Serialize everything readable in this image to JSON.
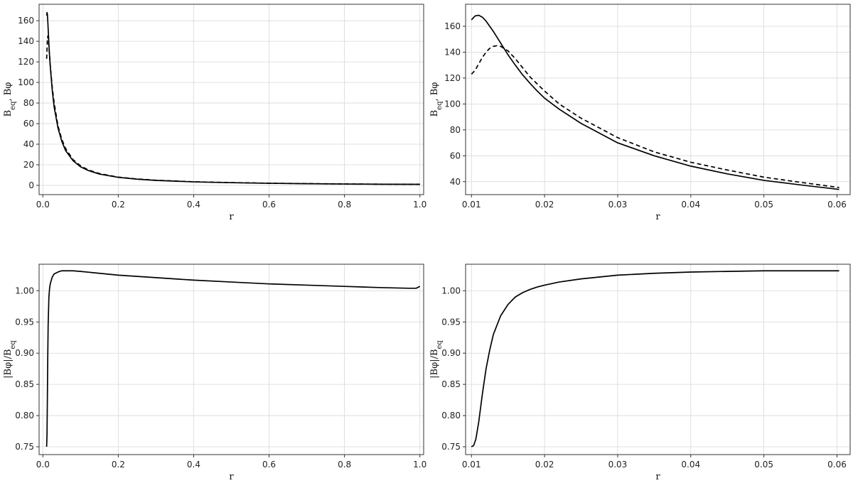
{
  "chart_data": [
    {
      "type": "line",
      "xlabel": "r",
      "ylabel": "Beq, Bφ",
      "ylabel_parts": {
        "b1": "B",
        "sub": "eq",
        "sep": ",  ",
        "b2": "Bφ"
      },
      "xlim": [
        -0.01,
        1.01
      ],
      "ylim": [
        -9,
        176
      ],
      "xticks": [
        0.0,
        0.2,
        0.4,
        0.6,
        0.8,
        1.0
      ],
      "xtick_labels": [
        "0.0",
        "0.2",
        "0.4",
        "0.6",
        "0.8",
        "1.0"
      ],
      "yticks": [
        0,
        20,
        40,
        60,
        80,
        100,
        120,
        140,
        160
      ],
      "ytick_labels": [
        "0",
        "20",
        "40",
        "60",
        "80",
        "100",
        "120",
        "140",
        "160"
      ],
      "grid": true,
      "series": [
        {
          "style": "solid",
          "x": [
            0.01,
            0.011,
            0.012,
            0.013,
            0.015,
            0.017,
            0.02,
            0.025,
            0.03,
            0.04,
            0.05,
            0.06,
            0.08,
            0.1,
            0.12,
            0.15,
            0.2,
            0.25,
            0.3,
            0.4,
            0.5,
            0.6,
            0.7,
            0.8,
            0.9,
            1.0
          ],
          "y": [
            165,
            168,
            166,
            160,
            145,
            130,
            114,
            92,
            76,
            56,
            43,
            34,
            24,
            18,
            14.5,
            11,
            7.8,
            6,
            4.8,
            3.4,
            2.6,
            2.0,
            1.6,
            1.3,
            1.1,
            1.0
          ]
        },
        {
          "style": "dashed",
          "x": [
            0.01,
            0.011,
            0.012,
            0.013,
            0.015,
            0.017,
            0.02,
            0.025,
            0.03,
            0.04,
            0.05,
            0.06,
            0.08,
            0.1,
            0.12,
            0.15,
            0.2,
            0.25,
            0.3,
            0.4,
            0.5,
            0.6,
            0.7,
            0.8,
            0.9,
            1.0
          ],
          "y": [
            123,
            133,
            142,
            145,
            140,
            130,
            115,
            95,
            80,
            58,
            45,
            36,
            25,
            19,
            15,
            11.5,
            8.0,
            6.2,
            5.0,
            3.5,
            2.7,
            2.1,
            1.7,
            1.35,
            1.15,
            1.0
          ]
        }
      ]
    },
    {
      "type": "line",
      "xlabel": "r",
      "ylabel": "Beq, Bφ",
      "ylabel_parts": {
        "b1": "B",
        "sub": "eq",
        "sep": ",  ",
        "b2": "Bφ"
      },
      "xlim": [
        0.0992,
        0.0618
      ],
      "xlim_note": "",
      "xrange": [
        0.0092,
        0.0618
      ],
      "ylim": [
        30,
        177
      ],
      "xticks": [
        0.01,
        0.02,
        0.03,
        0.04,
        0.05,
        0.06
      ],
      "xtick_labels": [
        "0.01",
        "0.02",
        "0.03",
        "0.04",
        "0.05",
        "0.06"
      ],
      "yticks": [
        40,
        60,
        80,
        100,
        120,
        140,
        160
      ],
      "ytick_labels": [
        "40",
        "60",
        "80",
        "100",
        "120",
        "140",
        "160"
      ],
      "grid": true,
      "series": [
        {
          "style": "solid",
          "x": [
            0.01,
            0.0105,
            0.011,
            0.0115,
            0.012,
            0.013,
            0.014,
            0.015,
            0.016,
            0.017,
            0.018,
            0.019,
            0.02,
            0.022,
            0.025,
            0.03,
            0.035,
            0.04,
            0.045,
            0.05,
            0.055,
            0.0603
          ],
          "y": [
            165,
            168,
            168.5,
            167,
            164,
            156,
            147,
            138,
            130,
            122.5,
            116,
            110,
            104.5,
            96,
            85,
            70,
            60,
            52,
            46,
            41,
            37.5,
            34
          ]
        },
        {
          "style": "dashed",
          "x": [
            0.01,
            0.0105,
            0.011,
            0.0115,
            0.012,
            0.0125,
            0.013,
            0.0135,
            0.014,
            0.015,
            0.016,
            0.017,
            0.018,
            0.019,
            0.02,
            0.022,
            0.025,
            0.03,
            0.035,
            0.04,
            0.045,
            0.05,
            0.055,
            0.0603
          ],
          "y": [
            123,
            126,
            131,
            136,
            140,
            143,
            144.5,
            145,
            144.5,
            141,
            135,
            128,
            121,
            115.5,
            110,
            100,
            89,
            74,
            63,
            55,
            49,
            43.5,
            39.5,
            35.5
          ]
        }
      ]
    },
    {
      "type": "line",
      "xlabel": "r",
      "ylabel": "|Bφ|/Beq",
      "ylabel_parts": {
        "b1": "|Bφ|/B",
        "sub": "eq",
        "sep": "",
        "b2": ""
      },
      "xlim": [
        -0.01,
        1.01
      ],
      "ylim": [
        0.7375,
        1.0425
      ],
      "xticks": [
        0.0,
        0.2,
        0.4,
        0.6,
        0.8,
        1.0
      ],
      "xtick_labels": [
        "0.0",
        "0.2",
        "0.4",
        "0.6",
        "0.8",
        "1.0"
      ],
      "yticks": [
        0.75,
        0.8,
        0.85,
        0.9,
        0.95,
        1.0
      ],
      "ytick_labels": [
        "0.75",
        "0.80",
        "0.85",
        "0.90",
        "0.95",
        "1.00"
      ],
      "grid": true,
      "series": [
        {
          "style": "solid",
          "x": [
            0.01,
            0.011,
            0.012,
            0.013,
            0.014,
            0.016,
            0.018,
            0.02,
            0.025,
            0.03,
            0.04,
            0.05,
            0.06,
            0.08,
            0.1,
            0.2,
            0.3,
            0.4,
            0.5,
            0.6,
            0.7,
            0.8,
            0.9,
            0.97,
            0.99,
            1.0
          ],
          "y": [
            0.75,
            0.77,
            0.83,
            0.895,
            0.945,
            0.99,
            1.005,
            1.012,
            1.022,
            1.027,
            1.03,
            1.032,
            1.032,
            1.032,
            1.031,
            1.025,
            1.021,
            1.017,
            1.014,
            1.011,
            1.009,
            1.007,
            1.005,
            1.004,
            1.004,
            1.007
          ]
        }
      ]
    },
    {
      "type": "line",
      "xlabel": "r",
      "ylabel": "|Bφ|/Beq",
      "ylabel_parts": {
        "b1": "|Bφ|/B",
        "sub": "eq",
        "sep": "",
        "b2": ""
      },
      "xrange": [
        0.0092,
        0.0618
      ],
      "ylim": [
        0.7375,
        1.0425
      ],
      "xticks": [
        0.01,
        0.02,
        0.03,
        0.04,
        0.05,
        0.06
      ],
      "xtick_labels": [
        "0.01",
        "0.02",
        "0.03",
        "0.04",
        "0.05",
        "0.06"
      ],
      "yticks": [
        0.75,
        0.8,
        0.85,
        0.9,
        0.95,
        1.0
      ],
      "ytick_labels": [
        "0.75",
        "0.80",
        "0.85",
        "0.90",
        "0.95",
        "1.00"
      ],
      "grid": true,
      "series": [
        {
          "style": "solid",
          "x": [
            0.01,
            0.0103,
            0.0106,
            0.011,
            0.0115,
            0.012,
            0.0125,
            0.013,
            0.014,
            0.015,
            0.016,
            0.017,
            0.018,
            0.019,
            0.02,
            0.022,
            0.025,
            0.03,
            0.035,
            0.04,
            0.045,
            0.05,
            0.055,
            0.0603
          ],
          "y": [
            0.75,
            0.752,
            0.762,
            0.79,
            0.835,
            0.875,
            0.905,
            0.93,
            0.96,
            0.978,
            0.99,
            0.997,
            1.002,
            1.006,
            1.009,
            1.014,
            1.019,
            1.025,
            1.028,
            1.03,
            1.031,
            1.032,
            1.032,
            1.032
          ]
        }
      ]
    }
  ]
}
